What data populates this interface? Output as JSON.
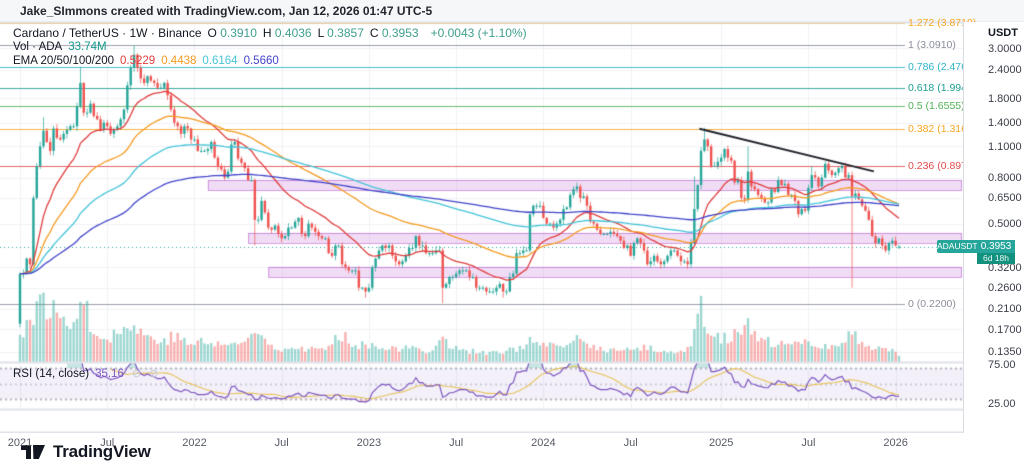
{
  "attribution": "Jake_SImmons created with TradingView.com, Jan 12, 2026 01:47 UTC-5",
  "legend": {
    "series_title": "Cardano / TetherUS · 1W · Binance",
    "ohlc": [
      {
        "label": "O",
        "value": "0.3910"
      },
      {
        "label": "H",
        "value": "0.4036"
      },
      {
        "label": "L",
        "value": "0.3857"
      },
      {
        "label": "C",
        "value": "0.3953"
      }
    ],
    "change": "+0.0043 (+1.10%)",
    "vol_label": "Vol · ADA",
    "vol_value": "33.74M",
    "ema_label": "EMA 20/50/100/200",
    "ema_values": [
      {
        "text": "0.5229",
        "color": "#e03e3e"
      },
      {
        "text": "0.4438",
        "color": "#f59b22"
      },
      {
        "text": "0.6164",
        "color": "#45c4d8"
      },
      {
        "text": "0.5660",
        "color": "#4245cb"
      }
    ]
  },
  "rsi_legend": {
    "label": "RSI (14, close)",
    "value": "35.16"
  },
  "price_axis": {
    "currency": "USDT",
    "ticks": [
      {
        "label": "3.0000",
        "value": 3.0
      },
      {
        "label": "2.4000",
        "value": 2.4
      },
      {
        "label": "1.8000",
        "value": 1.8
      },
      {
        "label": "1.4000",
        "value": 1.4
      },
      {
        "label": "1.1000",
        "value": 1.1
      },
      {
        "label": "0.8000",
        "value": 0.8
      },
      {
        "label": "0.6500",
        "value": 0.65
      },
      {
        "label": "0.5000",
        "value": 0.5
      },
      {
        "label": "0.3200",
        "value": 0.32
      },
      {
        "label": "0.2600",
        "value": 0.26
      },
      {
        "label": "0.2100",
        "value": 0.21
      },
      {
        "label": "0.1700",
        "value": 0.17
      },
      {
        "label": "0.1350",
        "value": 0.135
      }
    ],
    "current": {
      "symbol": "ADAUSDT",
      "price": "0.3953",
      "countdown": "6d 18h",
      "color": "#26a69a"
    }
  },
  "rsi_axis": {
    "ticks": [
      {
        "label": "75.00",
        "value": 75
      },
      {
        "label": "25.00",
        "value": 25
      }
    ]
  },
  "footer": {
    "brand": "TradingView"
  },
  "chart_data": {
    "type": "candlestick",
    "symbol": "ADAUSDT",
    "title": "Cardano / TetherUS",
    "exchange": "Binance",
    "timeframe": "1W",
    "price_scale": "log",
    "price_axis_range": [
      0.115,
      3.72
    ],
    "last_candle": {
      "open": 0.391,
      "high": 0.4036,
      "low": 0.3857,
      "close": 0.3953
    },
    "current_price": 0.3953,
    "volume_label": "33.74M",
    "first_open": 0.18,
    "x_ticks": [
      {
        "label": "2021",
        "week": 0
      },
      {
        "label": "Jul",
        "week": 26
      },
      {
        "label": "2022",
        "week": 52
      },
      {
        "label": "Jul",
        "week": 78
      },
      {
        "label": "2023",
        "week": 104
      },
      {
        "label": "Jul",
        "week": 130
      },
      {
        "label": "2024",
        "week": 156
      },
      {
        "label": "Jul",
        "week": 182
      },
      {
        "label": "2025",
        "week": 209
      },
      {
        "label": "Jul",
        "week": 235
      },
      {
        "label": "2026",
        "week": 261
      }
    ],
    "weekly_closes": [
      0.3,
      0.3,
      0.35,
      0.33,
      0.65,
      0.9,
      1.1,
      1.29,
      1.15,
      1.05,
      1.32,
      1.2,
      1.18,
      1.25,
      1.3,
      1.35,
      1.35,
      1.66,
      2.1,
      1.55,
      1.55,
      1.7,
      1.5,
      1.45,
      1.3,
      1.4,
      1.35,
      1.25,
      1.3,
      1.35,
      1.45,
      1.6,
      2.05,
      2.45,
      2.8,
      2.45,
      2.2,
      2.1,
      2.25,
      2.15,
      2.1,
      2.0,
      2.0,
      2.1,
      1.85,
      1.6,
      1.4,
      1.35,
      1.25,
      1.35,
      1.32,
      1.18,
      1.18,
      1.05,
      1.05,
      1.05,
      1.07,
      1.15,
      0.98,
      0.9,
      0.87,
      0.8,
      0.85,
      1.12,
      1.15,
      0.97,
      0.93,
      0.88,
      0.78,
      0.78,
      0.52,
      0.52,
      0.63,
      0.56,
      0.48,
      0.47,
      0.49,
      0.45,
      0.43,
      0.44,
      0.48,
      0.48,
      0.51,
      0.53,
      0.45,
      0.44,
      0.5,
      0.48,
      0.46,
      0.44,
      0.43,
      0.43,
      0.37,
      0.36,
      0.4,
      0.4,
      0.33,
      0.32,
      0.31,
      0.31,
      0.31,
      0.26,
      0.26,
      0.25,
      0.26,
      0.32,
      0.35,
      0.38,
      0.4,
      0.39,
      0.4,
      0.36,
      0.34,
      0.33,
      0.34,
      0.36,
      0.39,
      0.39,
      0.44,
      0.4,
      0.4,
      0.37,
      0.37,
      0.37,
      0.38,
      0.38,
      0.26,
      0.27,
      0.29,
      0.29,
      0.3,
      0.31,
      0.31,
      0.31,
      0.29,
      0.29,
      0.26,
      0.26,
      0.26,
      0.25,
      0.25,
      0.25,
      0.26,
      0.27,
      0.25,
      0.25,
      0.29,
      0.3,
      0.37,
      0.37,
      0.38,
      0.38,
      0.55,
      0.6,
      0.6,
      0.6,
      0.53,
      0.5,
      0.5,
      0.48,
      0.5,
      0.52,
      0.58,
      0.59,
      0.67,
      0.71,
      0.73,
      0.65,
      0.66,
      0.6,
      0.51,
      0.5,
      0.47,
      0.45,
      0.45,
      0.45,
      0.46,
      0.45,
      0.44,
      0.42,
      0.39,
      0.4,
      0.36,
      0.41,
      0.43,
      0.41,
      0.38,
      0.33,
      0.34,
      0.36,
      0.34,
      0.33,
      0.34,
      0.36,
      0.38,
      0.38,
      0.36,
      0.34,
      0.34,
      0.33,
      0.41,
      0.58,
      0.74,
      1.05,
      1.18,
      1.1,
      0.9,
      0.9,
      0.94,
      0.98,
      1.07,
      0.98,
      0.95,
      0.76,
      0.78,
      0.65,
      0.64,
      0.85,
      0.73,
      0.71,
      0.67,
      0.65,
      0.62,
      0.62,
      0.71,
      0.69,
      0.78,
      0.74,
      0.75,
      0.67,
      0.67,
      0.63,
      0.55,
      0.58,
      0.57,
      0.72,
      0.82,
      0.8,
      0.73,
      0.8,
      0.92,
      0.86,
      0.82,
      0.84,
      0.88,
      0.9,
      0.8,
      0.82,
      0.66,
      0.68,
      0.64,
      0.6,
      0.57,
      0.52,
      0.44,
      0.41,
      0.43,
      0.4,
      0.38,
      0.41,
      0.42,
      0.4,
      0.3953
    ],
    "wick_overrides": [
      [
        7,
        "high",
        1.48
      ],
      [
        18,
        "high",
        2.4766
      ],
      [
        34,
        "high",
        3.091
      ],
      [
        70,
        "low",
        0.4
      ],
      [
        103,
        "low",
        0.235
      ],
      [
        126,
        "low",
        0.222
      ],
      [
        144,
        "low",
        0.235
      ],
      [
        201,
        "high",
        0.81
      ],
      [
        204,
        "high",
        1.33
      ],
      [
        217,
        "high",
        1.1
      ],
      [
        236,
        "high",
        0.9
      ],
      [
        248,
        "low",
        0.26
      ]
    ],
    "volume_anchors": [
      [
        0,
        0.45
      ],
      [
        4,
        0.75
      ],
      [
        7,
        0.95
      ],
      [
        10,
        0.8
      ],
      [
        14,
        0.6
      ],
      [
        18,
        1.0
      ],
      [
        19,
        0.9
      ],
      [
        22,
        0.5
      ],
      [
        26,
        0.42
      ],
      [
        30,
        0.45
      ],
      [
        32,
        0.6
      ],
      [
        34,
        0.55
      ],
      [
        38,
        0.4
      ],
      [
        42,
        0.35
      ],
      [
        46,
        0.4
      ],
      [
        50,
        0.3
      ],
      [
        54,
        0.32
      ],
      [
        58,
        0.28
      ],
      [
        63,
        0.3
      ],
      [
        66,
        0.26
      ],
      [
        70,
        0.5
      ],
      [
        74,
        0.3
      ],
      [
        78,
        0.22
      ],
      [
        82,
        0.24
      ],
      [
        88,
        0.2
      ],
      [
        92,
        0.22
      ],
      [
        96,
        0.45
      ],
      [
        100,
        0.28
      ],
      [
        104,
        0.28
      ],
      [
        108,
        0.26
      ],
      [
        112,
        0.2
      ],
      [
        118,
        0.22
      ],
      [
        122,
        0.18
      ],
      [
        126,
        0.35
      ],
      [
        130,
        0.22
      ],
      [
        136,
        0.16
      ],
      [
        140,
        0.14
      ],
      [
        144,
        0.15
      ],
      [
        148,
        0.22
      ],
      [
        152,
        0.32
      ],
      [
        156,
        0.27
      ],
      [
        160,
        0.22
      ],
      [
        164,
        0.3
      ],
      [
        166,
        0.35
      ],
      [
        170,
        0.26
      ],
      [
        174,
        0.2
      ],
      [
        178,
        0.18
      ],
      [
        182,
        0.2
      ],
      [
        186,
        0.22
      ],
      [
        190,
        0.2
      ],
      [
        194,
        0.16
      ],
      [
        198,
        0.15
      ],
      [
        200,
        0.3
      ],
      [
        201,
        0.7
      ],
      [
        203,
        0.85
      ],
      [
        204,
        0.68
      ],
      [
        206,
        0.5
      ],
      [
        208,
        0.42
      ],
      [
        210,
        0.38
      ],
      [
        213,
        0.42
      ],
      [
        217,
        0.55
      ],
      [
        220,
        0.35
      ],
      [
        224,
        0.3
      ],
      [
        228,
        0.26
      ],
      [
        232,
        0.28
      ],
      [
        236,
        0.3
      ],
      [
        240,
        0.28
      ],
      [
        244,
        0.22
      ],
      [
        248,
        0.5
      ],
      [
        250,
        0.3
      ],
      [
        252,
        0.26
      ],
      [
        256,
        0.24
      ],
      [
        260,
        0.2
      ],
      [
        262,
        0.12
      ]
    ],
    "emas": [
      {
        "period": 20,
        "color": "#e03e3e",
        "legend_value": "0.5229"
      },
      {
        "period": 50,
        "color": "#f59b22",
        "legend_value": "0.4438"
      },
      {
        "period": 100,
        "color": "#45c4d8",
        "legend_value": "0.6164"
      },
      {
        "period": 200,
        "color": "#4245cb",
        "legend_value": "0.5660"
      }
    ],
    "fib_levels": [
      {
        "label": "1.272 (3.8719)",
        "ratio": 1.272,
        "price": 3.8719,
        "color": "#f5a623"
      },
      {
        "label": "1 (3.0910)",
        "ratio": 1.0,
        "price": 3.091,
        "color": "#8b8f9b"
      },
      {
        "label": "0.786 (2.4766)",
        "ratio": 0.786,
        "price": 2.4766,
        "color": "#2cb5c5"
      },
      {
        "label": "0.618 (1.9943)",
        "ratio": 0.618,
        "price": 1.9943,
        "color": "#1a9e8f"
      },
      {
        "label": "0.5 (1.6555)",
        "ratio": 0.5,
        "price": 1.6555,
        "color": "#53b255"
      },
      {
        "label": "0.382 (1.3167)",
        "ratio": 0.382,
        "price": 1.3167,
        "color": "#f5a623"
      },
      {
        "label": "0.236 (0.8976)",
        "ratio": 0.236,
        "price": 0.8976,
        "color": "#e24a4a"
      },
      {
        "label": "0 (0.2200)",
        "ratio": 0.0,
        "price": 0.22,
        "color": "#8b8f9b"
      }
    ],
    "zones": [
      {
        "start_week": 56,
        "price_top": 0.78,
        "price_bottom": 0.702
      },
      {
        "start_week": 68,
        "price_top": 0.455,
        "price_bottom": 0.41
      },
      {
        "start_week": 74,
        "price_top": 0.322,
        "price_bottom": 0.29
      }
    ],
    "trendline": {
      "w1": 202.5,
      "p1": 1.317,
      "w2": 254.5,
      "p2": 0.852,
      "color": "#22242c"
    },
    "rsi": {
      "period": 14,
      "value": 35.16,
      "overbought": 70,
      "middle": 50,
      "oversold": 30,
      "line_color": "#7e57c2",
      "ma_color": "#e8c35a",
      "band_fill": "rgba(126,87,194,0.09)",
      "over_fill": "rgba(56,166,154,0.28)",
      "under_fill": "rgba(239,83,80,0.25)"
    },
    "colors": {
      "up": "#26a69a",
      "down": "#ef5350",
      "vol_up": "rgba(38,166,154,0.45)",
      "vol_down": "rgba(239,83,80,0.45)",
      "grid": "#f0f2f6",
      "separator": "#e0e3eb",
      "zone_fill": "rgba(209,139,223,0.30)",
      "zone_border": "rgba(178,82,201,0.55)",
      "current_price_line": "#2aa79c"
    }
  }
}
